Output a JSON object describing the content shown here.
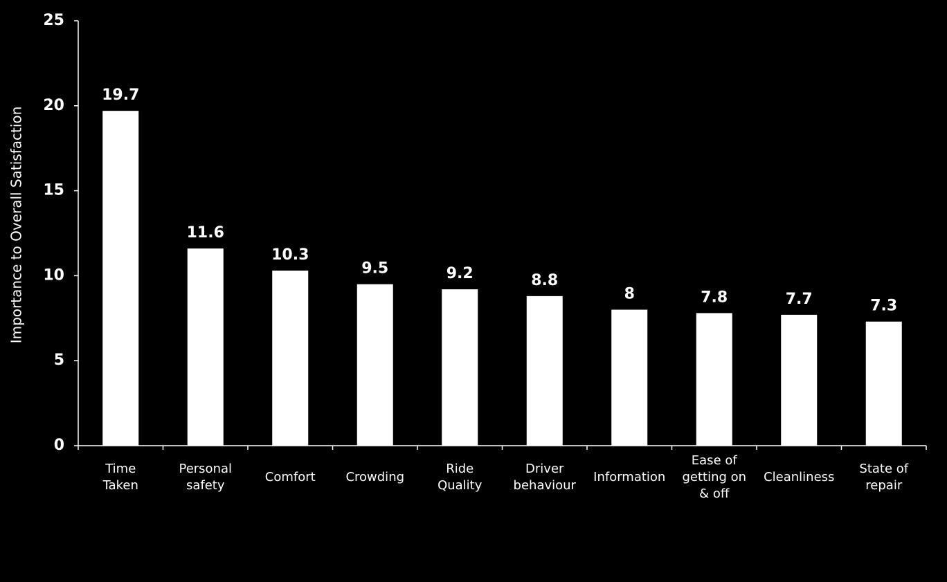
{
  "chart_data": {
    "type": "bar",
    "y_label": "Importance to Overall Satisfaction",
    "categories": [
      "Time\nTaken",
      "Personal\nsafety",
      "Comfort",
      "Crowding",
      "Ride\nQuality",
      "Driver\nbehaviour",
      "Information",
      "Ease of\ngetting on\n& off",
      "Cleanliness",
      "State of\nrepair"
    ],
    "values": [
      19.7,
      11.6,
      10.3,
      9.5,
      9.2,
      8.8,
      8,
      7.8,
      7.7,
      7.3
    ],
    "color": "#ffffff",
    "ylim": [
      0,
      25
    ],
    "yticks": [
      0,
      5,
      10,
      15,
      20,
      25
    ],
    "grid": false
  }
}
